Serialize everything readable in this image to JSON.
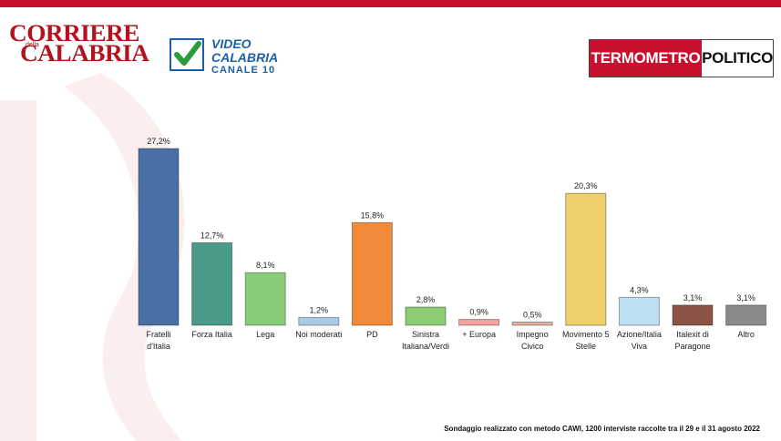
{
  "header": {
    "corriere_line1": "CORRIERE",
    "corriere_della": "della",
    "corriere_line2": "CALABRIA",
    "video_line1": "VIDEO",
    "video_line2": "CALABRIA",
    "video_line3": "CANALE 10",
    "tp_part1": "TERMOMETRO",
    "tp_part2": "POLITICO"
  },
  "colors": {
    "accent": "#c8102e",
    "brand_blue": "#1d5fa8"
  },
  "chart_data": {
    "type": "bar",
    "title": "",
    "xlabel": "",
    "ylabel": "",
    "ylim": [
      0,
      30
    ],
    "grid": false,
    "legend": "none",
    "categories": [
      [
        "Fratelli",
        "d'Italia"
      ],
      [
        "Forza Italia"
      ],
      [
        "Lega"
      ],
      [
        "Noi moderati"
      ],
      [
        "PD"
      ],
      [
        "Sinistra",
        "Italiana/Verdi"
      ],
      [
        "+ Europa"
      ],
      [
        "Impegno",
        "Civico"
      ],
      [
        "Movimento 5",
        "Stelle"
      ],
      [
        "Azione/Italia",
        "Viva"
      ],
      [
        "Italexit di",
        "Paragone"
      ],
      [
        "Altro"
      ]
    ],
    "values": [
      27.2,
      12.7,
      8.1,
      1.2,
      15.8,
      2.8,
      0.9,
      0.5,
      20.3,
      4.3,
      3.1,
      3.1
    ],
    "value_labels": [
      "27,2%",
      "12,7%",
      "8,1%",
      "1,2%",
      "15,8%",
      "2,8%",
      "0,9%",
      "0,5%",
      "20,3%",
      "4,3%",
      "3,1%",
      "3,1%"
    ],
    "colors": [
      "#4a6fa5",
      "#4a9a8a",
      "#86cc79",
      "#a9cbe6",
      "#f08a38",
      "#8ccc73",
      "#f7a1a1",
      "#dfb4a2",
      "#eed06a",
      "#bcdff2",
      "#8b5444",
      "#8a8a8a"
    ]
  },
  "footnote": "Sondaggio realizzato con metodo CAWI, 1200 interviste raccolte tra il 29 e il 31 agosto 2022"
}
